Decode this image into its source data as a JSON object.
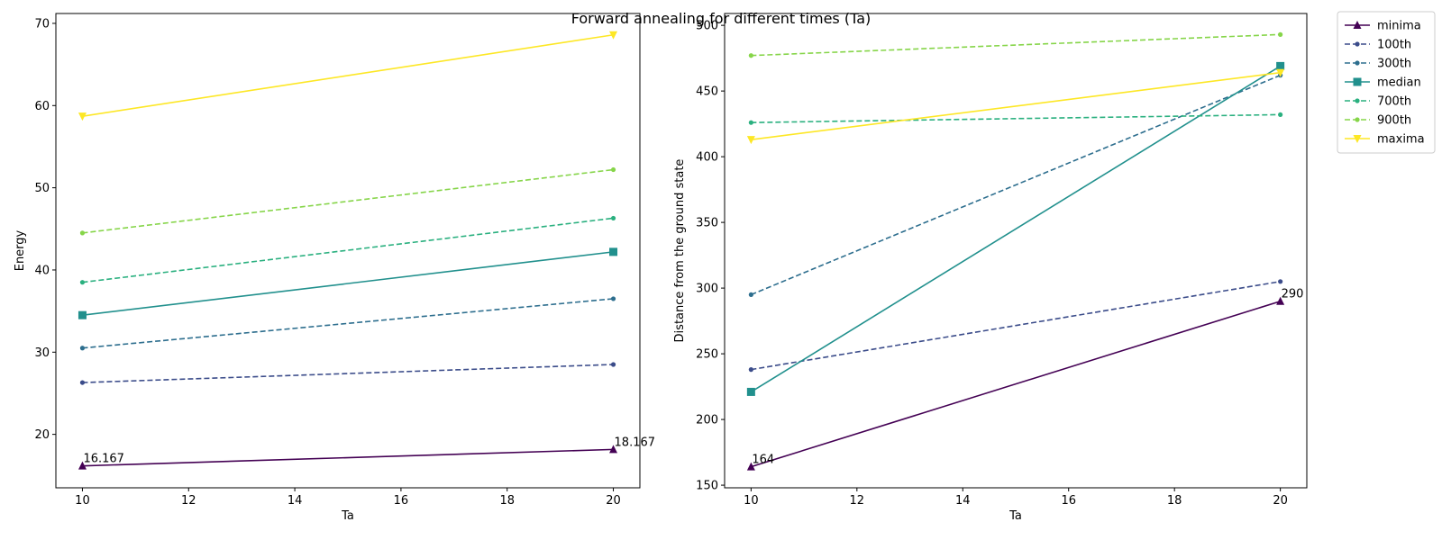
{
  "figure_title": "Forward annealing for different times (Ta)",
  "chart_data": [
    {
      "type": "line",
      "xlabel": "Ta",
      "ylabel": "Energy",
      "xlim": [
        9.5,
        20.5
      ],
      "ylim": [
        13.5,
        71.2
      ],
      "xticks": [
        10,
        12,
        14,
        16,
        18,
        20
      ],
      "yticks": [
        20,
        30,
        40,
        50,
        60,
        70
      ],
      "x": [
        10,
        20
      ],
      "series": [
        {
          "name": "minima",
          "values": [
            16.167,
            18.167
          ],
          "color": "#440154",
          "dash": false,
          "marker": "triangle-up"
        },
        {
          "name": "100th",
          "values": [
            26.3,
            28.5
          ],
          "color": "#3b4c8a",
          "dash": true,
          "marker": "dot"
        },
        {
          "name": "300th",
          "values": [
            30.5,
            36.5
          ],
          "color": "#2d6e8e",
          "dash": true,
          "marker": "dot"
        },
        {
          "name": "median",
          "values": [
            34.5,
            42.2
          ],
          "color": "#21908d",
          "dash": false,
          "marker": "square"
        },
        {
          "name": "700th",
          "values": [
            38.5,
            46.3
          ],
          "color": "#2ab07f",
          "dash": true,
          "marker": "dot"
        },
        {
          "name": "900th",
          "values": [
            44.5,
            52.2
          ],
          "color": "#86d549",
          "dash": true,
          "marker": "dot"
        },
        {
          "name": "maxima",
          "values": [
            58.7,
            68.6
          ],
          "color": "#fde725",
          "dash": false,
          "marker": "triangle-down"
        }
      ],
      "annotations": [
        {
          "text": "16.167",
          "x": 10,
          "y": 16.167
        },
        {
          "text": "18.167",
          "x": 20,
          "y": 18.167
        }
      ]
    },
    {
      "type": "line",
      "xlabel": "Ta",
      "ylabel": "Distance from the ground state",
      "xlim": [
        9.5,
        20.5
      ],
      "ylim": [
        148,
        509
      ],
      "xticks": [
        10,
        12,
        14,
        16,
        18,
        20
      ],
      "yticks": [
        150,
        200,
        250,
        300,
        350,
        400,
        450,
        500
      ],
      "x": [
        10,
        20
      ],
      "series": [
        {
          "name": "minima",
          "values": [
            164,
            290
          ],
          "color": "#440154",
          "dash": false,
          "marker": "triangle-up"
        },
        {
          "name": "100th",
          "values": [
            238,
            305
          ],
          "color": "#3b4c8a",
          "dash": true,
          "marker": "dot"
        },
        {
          "name": "300th",
          "values": [
            295,
            462
          ],
          "color": "#2d6e8e",
          "dash": true,
          "marker": "dot"
        },
        {
          "name": "median",
          "values": [
            221,
            469
          ],
          "color": "#21908d",
          "dash": false,
          "marker": "square"
        },
        {
          "name": "700th",
          "values": [
            426,
            432
          ],
          "color": "#2ab07f",
          "dash": true,
          "marker": "dot"
        },
        {
          "name": "900th",
          "values": [
            477,
            493
          ],
          "color": "#86d549",
          "dash": true,
          "marker": "dot"
        },
        {
          "name": "maxima",
          "values": [
            413,
            464
          ],
          "color": "#fde725",
          "dash": false,
          "marker": "triangle-down"
        }
      ],
      "annotations": [
        {
          "text": "164",
          "x": 10,
          "y": 164
        },
        {
          "text": "290",
          "x": 20,
          "y": 290
        }
      ]
    }
  ],
  "legend": {
    "placement": "outside-right",
    "entries": [
      "minima",
      "100th",
      "300th",
      "median",
      "700th",
      "900th",
      "maxima"
    ]
  }
}
